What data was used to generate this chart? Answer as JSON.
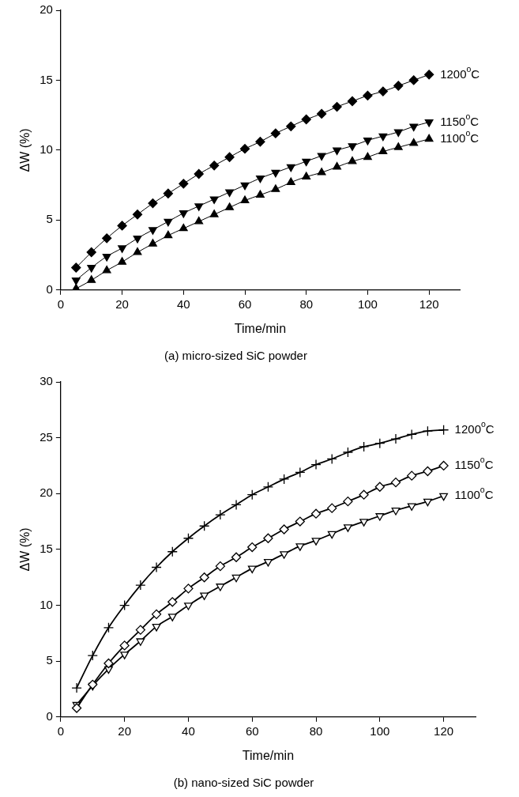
{
  "chart_data": [
    {
      "type": "line",
      "title": "(a) micro-sized SiC powder",
      "xlabel": "Time/min",
      "ylabel": "ΔW (%)",
      "x": [
        5,
        10,
        15,
        20,
        25,
        30,
        35,
        40,
        45,
        50,
        55,
        60,
        65,
        70,
        75,
        80,
        85,
        90,
        95,
        100,
        105,
        110,
        115,
        120
      ],
      "xlim": [
        0,
        130
      ],
      "xticks": [
        0,
        20,
        40,
        60,
        80,
        100,
        120
      ],
      "ylim": [
        0,
        20
      ],
      "yticks": [
        0,
        5,
        10,
        15,
        20
      ],
      "grid": false,
      "legend": false,
      "line_style": "solid",
      "series": [
        {
          "name": "1200$^{o}$C",
          "color": "#000000",
          "marker": "diamond",
          "values": [
            1.6,
            2.7,
            3.7,
            4.6,
            5.4,
            6.2,
            6.9,
            7.6,
            8.3,
            8.9,
            9.5,
            10.1,
            10.6,
            11.2,
            11.7,
            12.2,
            12.6,
            13.1,
            13.5,
            13.9,
            14.2,
            14.6,
            15.0,
            15.4
          ]
        },
        {
          "name": "1150$^{o}$C",
          "color": "#000000",
          "marker": "triangle-down",
          "values": [
            0.7,
            1.6,
            2.4,
            3.0,
            3.7,
            4.3,
            4.9,
            5.5,
            6.0,
            6.5,
            7.0,
            7.5,
            8.0,
            8.4,
            8.8,
            9.2,
            9.6,
            10.0,
            10.3,
            10.7,
            11.0,
            11.3,
            11.7,
            12.0
          ]
        },
        {
          "name": "1100$^{o}$C",
          "color": "#000000",
          "marker": "triangle",
          "values": [
            0.1,
            0.7,
            1.4,
            2.0,
            2.7,
            3.3,
            3.9,
            4.4,
            4.9,
            5.4,
            5.9,
            6.4,
            6.8,
            7.2,
            7.7,
            8.1,
            8.4,
            8.8,
            9.2,
            9.5,
            9.9,
            10.2,
            10.5,
            10.8
          ]
        }
      ]
    },
    {
      "type": "line",
      "title": "(b) nano-sized SiC powder",
      "xlabel": "Time/min",
      "ylabel": "ΔW (%)",
      "x": [
        5,
        10,
        15,
        20,
        25,
        30,
        35,
        40,
        45,
        50,
        55,
        60,
        65,
        70,
        75,
        80,
        85,
        90,
        95,
        100,
        105,
        110,
        115,
        120
      ],
      "xlim": [
        0,
        130
      ],
      "xticks": [
        0,
        20,
        40,
        60,
        80,
        100,
        120
      ],
      "ylim": [
        0,
        30
      ],
      "yticks": [
        0,
        5,
        10,
        15,
        20,
        25,
        30
      ],
      "grid": false,
      "legend": false,
      "line_style": "solid",
      "series": [
        {
          "name": "1200$^{o}$C",
          "color": "#000000",
          "marker": "cross",
          "values": [
            2.6,
            5.5,
            8.0,
            10.0,
            11.8,
            13.4,
            14.8,
            16.0,
            17.1,
            18.1,
            19.0,
            19.9,
            20.6,
            21.3,
            21.9,
            22.6,
            23.1,
            23.7,
            24.2,
            24.5,
            24.9,
            25.3,
            25.6,
            25.7
          ]
        },
        {
          "name": "1150$^{o}$C",
          "color": "#000000",
          "marker": "diamond-open",
          "values": [
            0.8,
            2.9,
            4.8,
            6.4,
            7.8,
            9.2,
            10.3,
            11.5,
            12.5,
            13.5,
            14.3,
            15.2,
            16.0,
            16.8,
            17.5,
            18.2,
            18.7,
            19.3,
            19.9,
            20.6,
            21.0,
            21.6,
            22.0,
            22.5
          ]
        },
        {
          "name": "1100$^{o}$C",
          "color": "#000000",
          "marker": "triangle-down-open",
          "values": [
            1.1,
            2.8,
            4.3,
            5.6,
            6.8,
            8.1,
            9.0,
            10.0,
            10.9,
            11.7,
            12.5,
            13.3,
            13.9,
            14.6,
            15.3,
            15.8,
            16.4,
            17.0,
            17.5,
            18.0,
            18.5,
            18.9,
            19.3,
            19.8
          ]
        }
      ]
    }
  ]
}
